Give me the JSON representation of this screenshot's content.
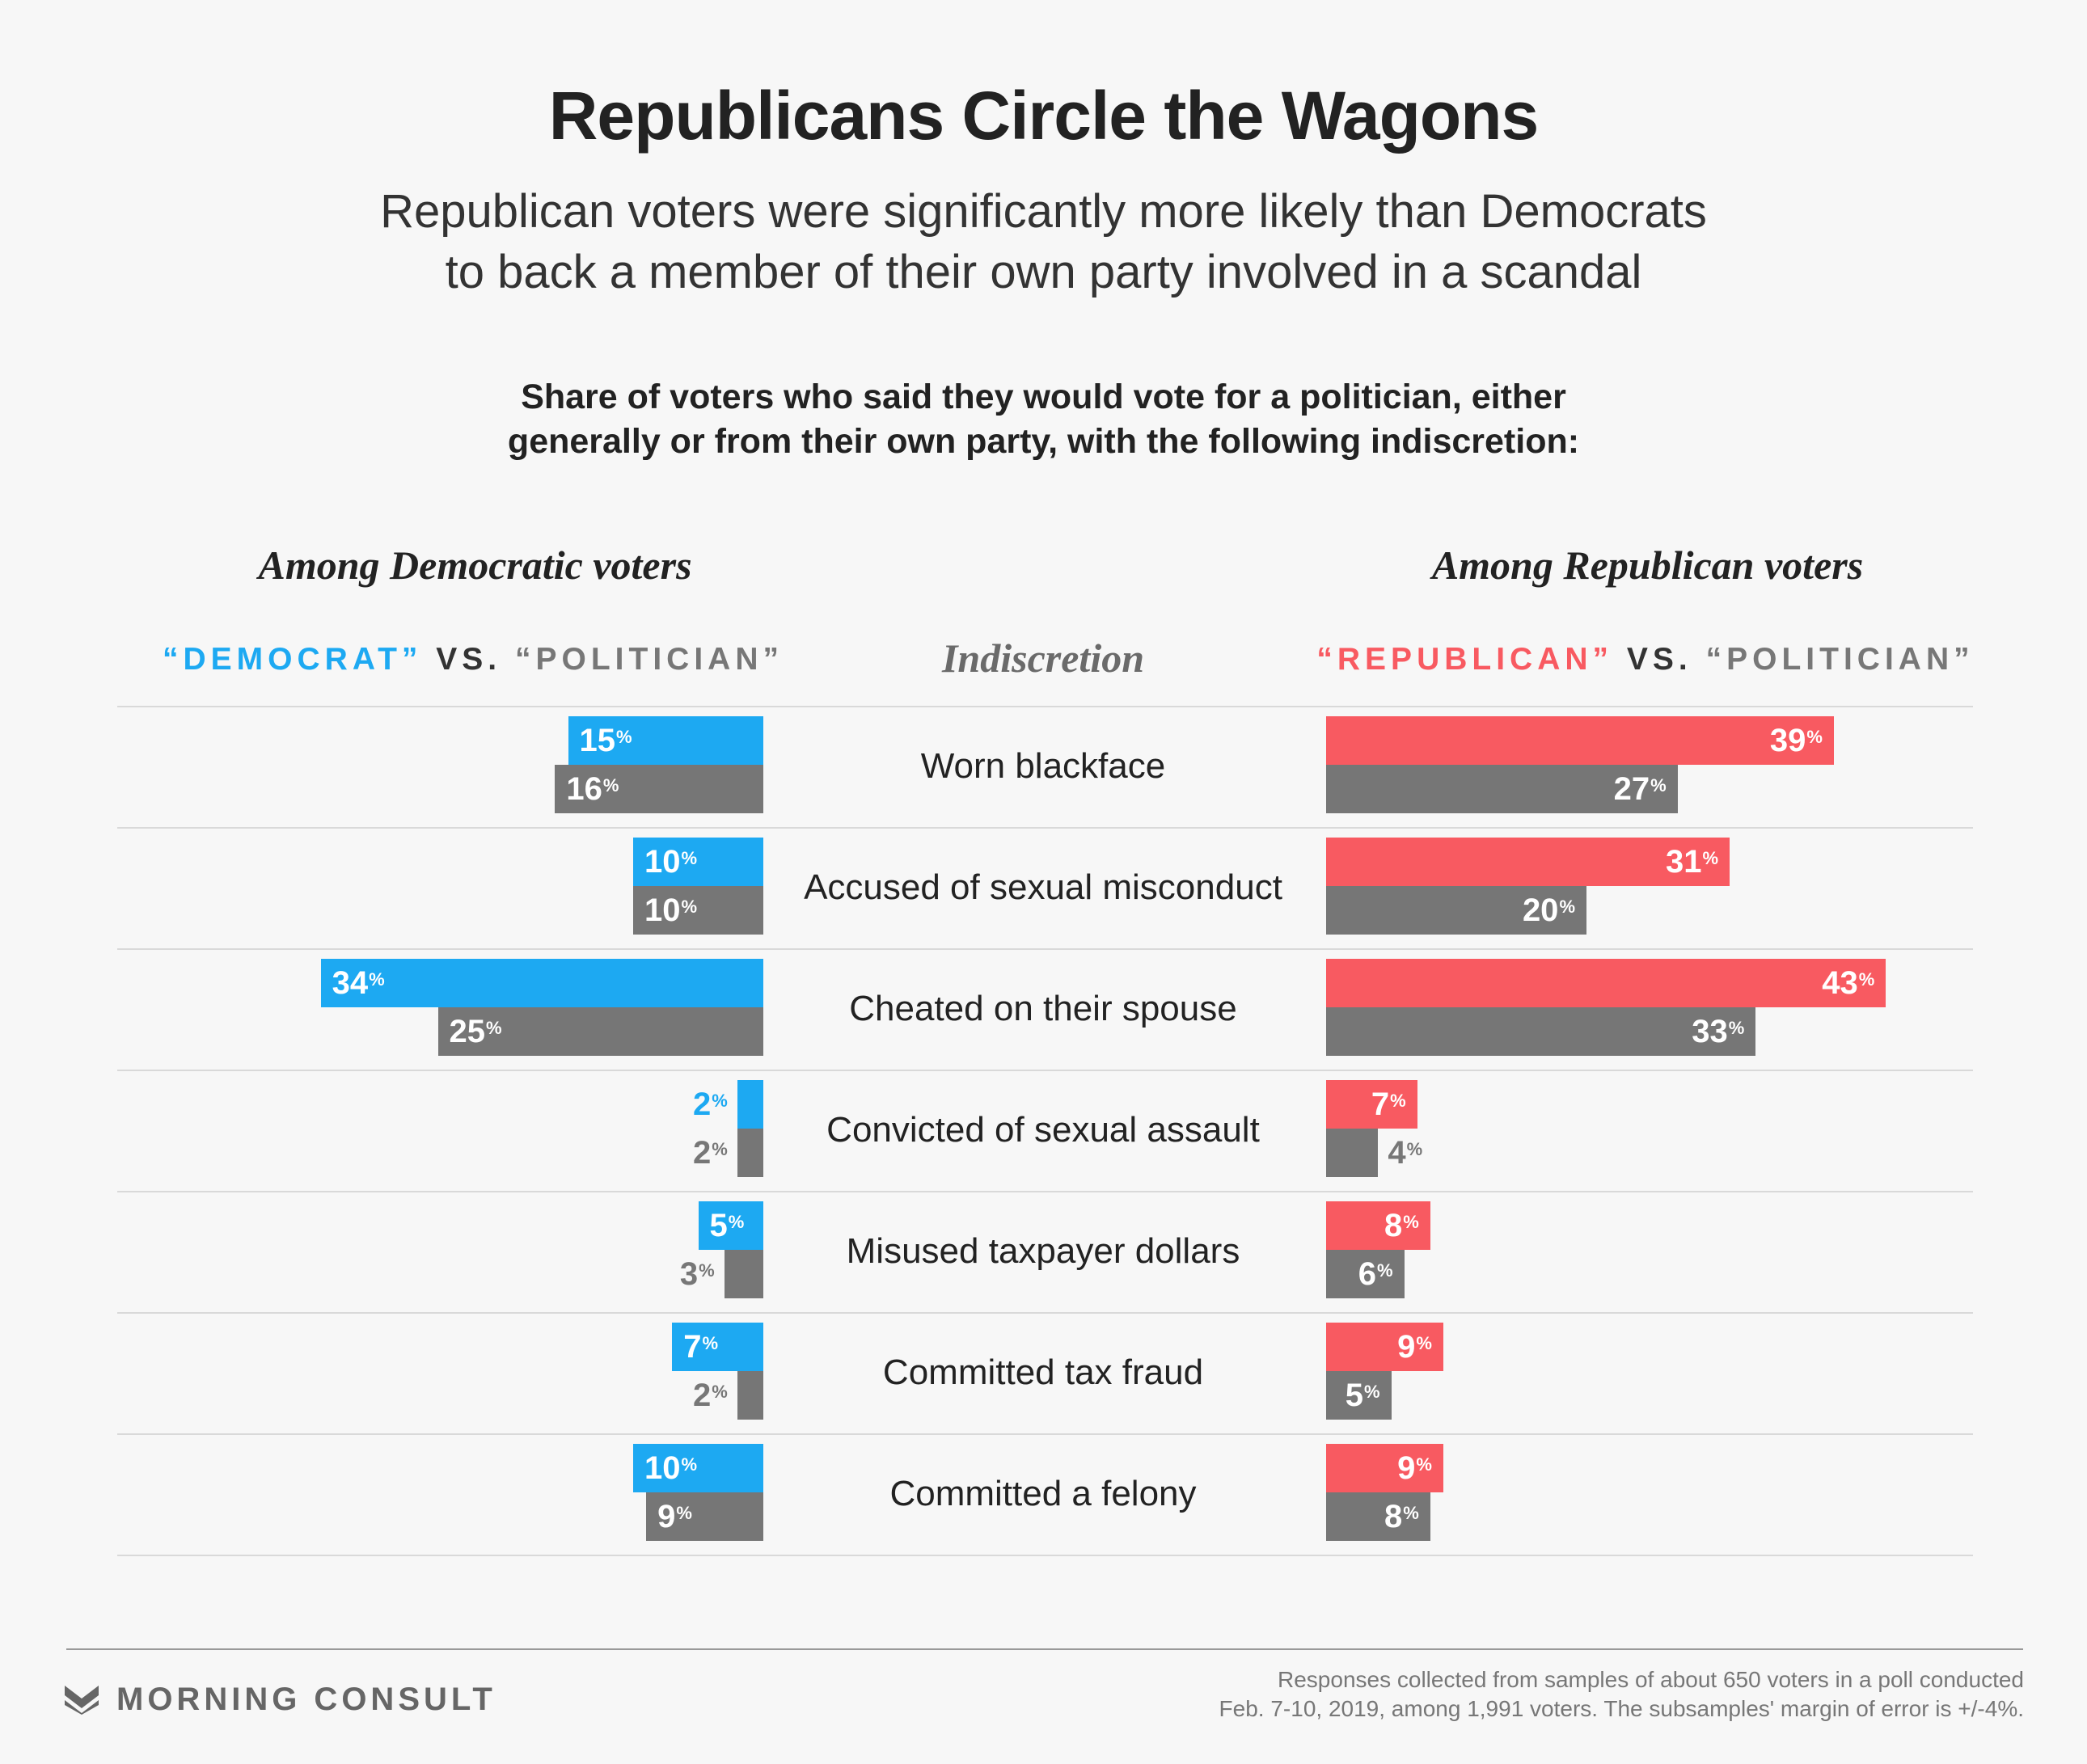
{
  "title": "Republicans Circle the Wagons",
  "subtitle": [
    "Republican voters were significantly more likely than Democrats",
    "to back a member of their own party involved in a scandal"
  ],
  "description": [
    "Share of voters who said they would vote for a politician, either",
    "generally or from their own party, with the following indiscretion:"
  ],
  "left_panel": {
    "title": "Among Democratic voters",
    "legend_party": "“DEMOCRAT”",
    "legend_vs": "VS.",
    "legend_politician": "“POLITICIAN”"
  },
  "right_panel": {
    "title": "Among Republican voters",
    "legend_party": "“REPUBLICAN”",
    "legend_vs": "VS.",
    "legend_politician": "“POLITICIAN”"
  },
  "center_header": "Indiscretion",
  "percent_symbol": "%",
  "colors": {
    "democrat": "#1da9f2",
    "republican": "#f85a61",
    "politician": "#767676"
  },
  "chart_data": {
    "type": "bar",
    "orientation": "horizontal",
    "unit": "%",
    "categories": [
      "Worn blackface",
      "Accused of sexual misconduct",
      "Cheated on their spouse",
      "Convicted of sexual assault",
      "Misused taxpayer dollars",
      "Committed tax fraud",
      "Committed a felony"
    ],
    "series": [
      {
        "name": "“Democrat”",
        "panel": "Among Democratic voters",
        "values": [
          15,
          10,
          34,
          2,
          5,
          7,
          10
        ]
      },
      {
        "name": "“Politician”",
        "panel": "Among Democratic voters",
        "values": [
          16,
          10,
          25,
          2,
          3,
          2,
          9
        ]
      },
      {
        "name": "“Republican”",
        "panel": "Among Republican voters",
        "values": [
          39,
          31,
          43,
          7,
          8,
          9,
          9
        ]
      },
      {
        "name": "“Politician”",
        "panel": "Among Republican voters",
        "values": [
          27,
          20,
          33,
          4,
          6,
          5,
          8
        ]
      }
    ]
  },
  "footer": {
    "brand": "MORNING CONSULT",
    "note": [
      "Responses collected from samples of about 650 voters in a poll conducted",
      "Feb. 7-10, 2019, among 1,991 voters. The subsamples' margin of error is +/-4%."
    ]
  }
}
